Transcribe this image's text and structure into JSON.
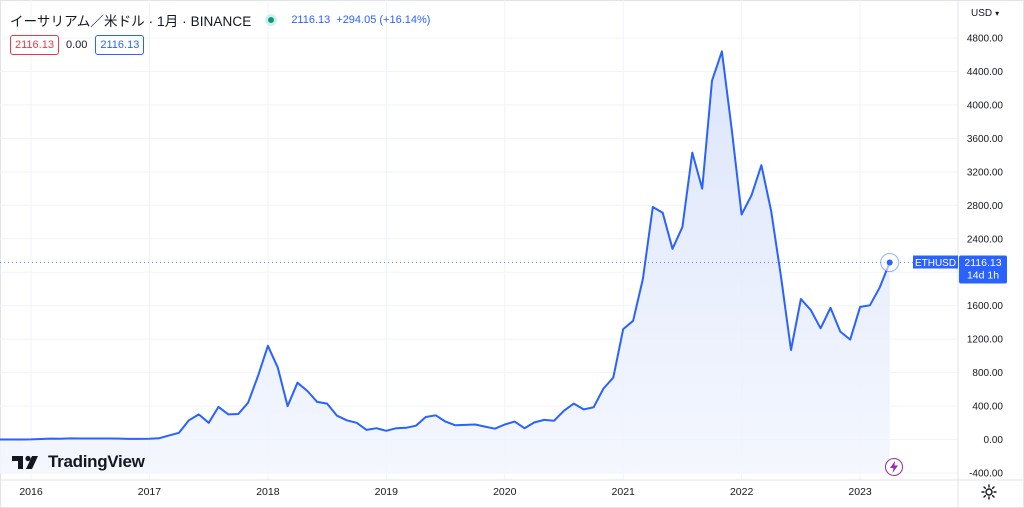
{
  "header": {
    "symbol_title": "イーサリアム／米ドル · 1月 · BINANCE",
    "last_price": "2116.13",
    "change": "+294.05 (+16.14%)"
  },
  "badges": {
    "sell": "2116.13",
    "spread": "0.00",
    "buy": "2116.13"
  },
  "currency": {
    "label": "USD"
  },
  "brand": {
    "name": "TradingView"
  },
  "price_label": {
    "symbol": "ETHUSD",
    "price": "2116.13",
    "countdown": "14d 1h"
  },
  "colors": {
    "line": "#2962ff",
    "area_top": "#dbe4fb",
    "area_bottom": "#f3f6fe",
    "grid": "#f0f3fa",
    "axis_text": "#131722"
  },
  "chart_data": {
    "type": "area",
    "title": "",
    "xlabel": "",
    "ylabel": "",
    "ylim": [
      -400,
      4800
    ],
    "y_ticks": [
      "4800.00",
      "4400.00",
      "4000.00",
      "3600.00",
      "3200.00",
      "2800.00",
      "2400.00",
      "2000.00",
      "1600.00",
      "1200.00",
      "800.00",
      "400.00",
      "0.00",
      "-400.00"
    ],
    "x_ticks": [
      "2016",
      "2017",
      "2018",
      "2019",
      "2020",
      "2021",
      "2022",
      "2023"
    ],
    "grid": true,
    "x": [
      "2015-08",
      "2015-09",
      "2015-10",
      "2015-11",
      "2015-12",
      "2016-01",
      "2016-02",
      "2016-03",
      "2016-04",
      "2016-05",
      "2016-06",
      "2016-07",
      "2016-08",
      "2016-09",
      "2016-10",
      "2016-11",
      "2016-12",
      "2017-01",
      "2017-02",
      "2017-03",
      "2017-04",
      "2017-05",
      "2017-06",
      "2017-07",
      "2017-08",
      "2017-09",
      "2017-10",
      "2017-11",
      "2017-12",
      "2018-01",
      "2018-02",
      "2018-03",
      "2018-04",
      "2018-05",
      "2018-06",
      "2018-07",
      "2018-08",
      "2018-09",
      "2018-10",
      "2018-11",
      "2018-12",
      "2019-01",
      "2019-02",
      "2019-03",
      "2019-04",
      "2019-05",
      "2019-06",
      "2019-07",
      "2019-08",
      "2019-09",
      "2019-10",
      "2019-11",
      "2019-12",
      "2020-01",
      "2020-02",
      "2020-03",
      "2020-04",
      "2020-05",
      "2020-06",
      "2020-07",
      "2020-08",
      "2020-09",
      "2020-10",
      "2020-11",
      "2020-12",
      "2021-01",
      "2021-02",
      "2021-03",
      "2021-04",
      "2021-05",
      "2021-06",
      "2021-07",
      "2021-08",
      "2021-09",
      "2021-10",
      "2021-11",
      "2021-12",
      "2022-01",
      "2022-02",
      "2022-03",
      "2022-04",
      "2022-05",
      "2022-06",
      "2022-07",
      "2022-08",
      "2022-09",
      "2022-10",
      "2022-11",
      "2022-12",
      "2023-01",
      "2023-02",
      "2023-03",
      "2023-04"
    ],
    "series": [
      {
        "values": [
          2,
          1,
          1,
          1,
          1,
          2,
          6,
          11,
          9,
          14,
          12,
          12,
          12,
          13,
          11,
          8,
          8,
          10,
          16,
          50,
          80,
          230,
          300,
          200,
          390,
          300,
          305,
          440,
          760,
          1120,
          860,
          400,
          680,
          580,
          450,
          430,
          285,
          230,
          200,
          115,
          135,
          105,
          136,
          140,
          165,
          270,
          290,
          215,
          170,
          175,
          180,
          155,
          130,
          180,
          215,
          135,
          205,
          235,
          225,
          345,
          430,
          360,
          385,
          610,
          740,
          1320,
          1420,
          1920,
          2780,
          2710,
          2280,
          2540,
          3430,
          3000,
          4290,
          4640,
          3700,
          2690,
          2920,
          3280,
          2730,
          1940,
          1070,
          1680,
          1550,
          1330,
          1575,
          1290,
          1195,
          1585,
          1605,
          1820,
          2116.13
        ]
      }
    ]
  }
}
